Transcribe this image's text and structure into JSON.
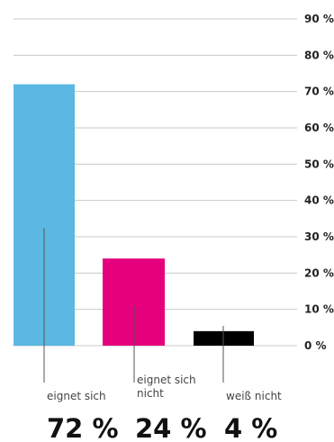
{
  "chart_data": {
    "type": "bar",
    "categories": [
      [
        "eignet sich"
      ],
      [
        "eignet sich",
        "nicht"
      ],
      [
        "weiß nicht"
      ]
    ],
    "values": [
      72,
      24,
      4
    ],
    "value_labels": [
      "72 %",
      "24 %",
      "4 %"
    ],
    "colors": [
      "#5bb8e3",
      "#e5007d",
      "#000000"
    ],
    "ylim": [
      0,
      90
    ],
    "yticks": [
      {
        "value": 0,
        "label": "0 %"
      },
      {
        "value": 10,
        "label": "10 %"
      },
      {
        "value": 20,
        "label": "20 %"
      },
      {
        "value": 30,
        "label": "30 %"
      },
      {
        "value": 40,
        "label": "40 %"
      },
      {
        "value": 50,
        "label": "50 %"
      },
      {
        "value": 60,
        "label": "60 %"
      },
      {
        "value": 70,
        "label": "70 %"
      },
      {
        "value": 80,
        "label": "80 %"
      },
      {
        "value": 90,
        "label": "90 %"
      }
    ],
    "grid": true,
    "gridline_color": "#c8c8c8",
    "leader_color": "#555555"
  }
}
